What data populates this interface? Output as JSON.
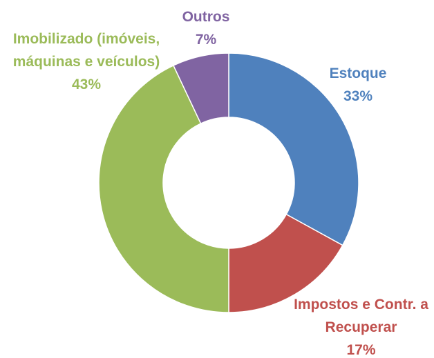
{
  "chart_data": {
    "type": "donut",
    "categories": [
      "Estoque",
      "Impostos e Contr. a Recuperar",
      "Imobilizado (imóveis, máquinas e veículos)",
      "Outros"
    ],
    "values": [
      33,
      17,
      43,
      7
    ],
    "value_labels": [
      "33%",
      "17%",
      "43%",
      "7%"
    ],
    "colors": [
      "#4f81bd",
      "#c0504d",
      "#9bbb59",
      "#8064a2"
    ]
  }
}
